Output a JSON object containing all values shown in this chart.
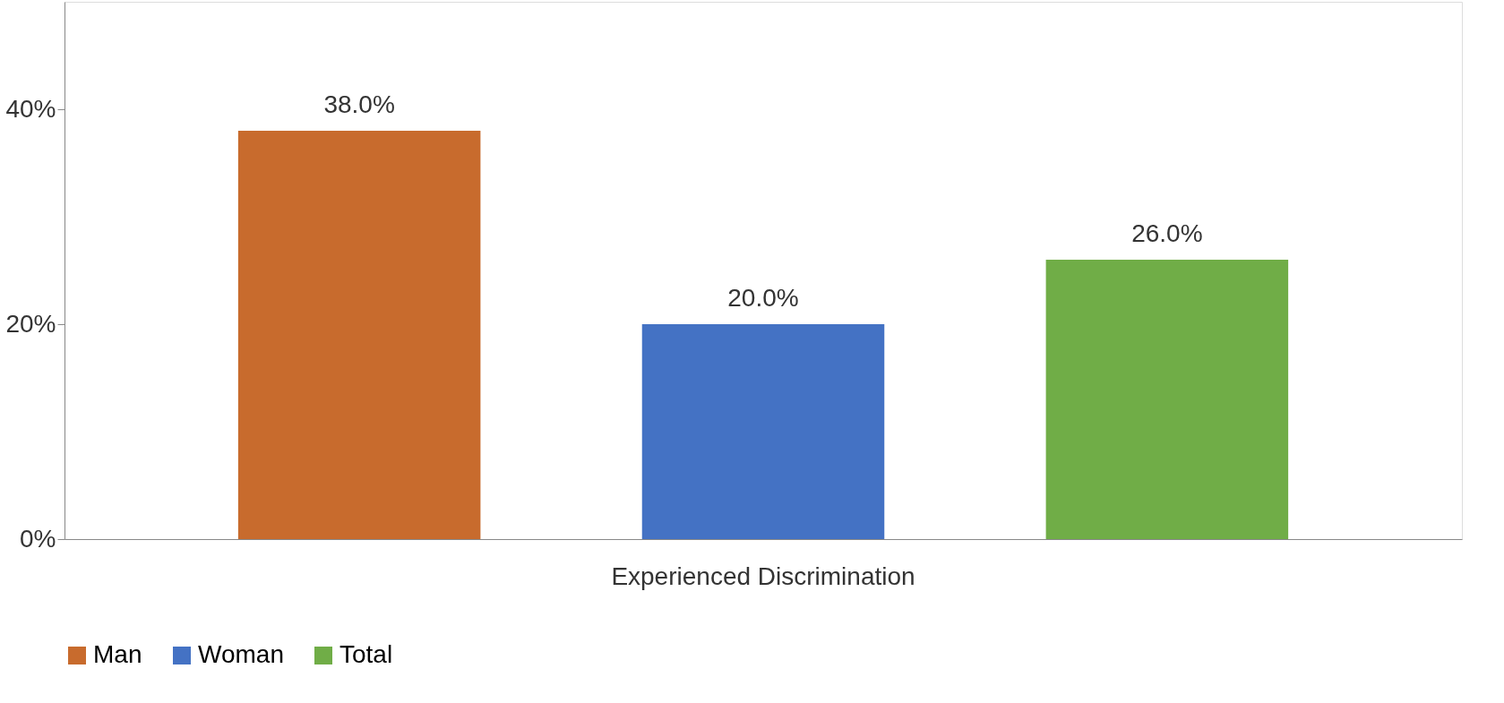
{
  "chart_data": {
    "type": "bar",
    "categories": [
      "Experienced Discrimination"
    ],
    "series": [
      {
        "name": "Man",
        "color": "#c86b2d",
        "values": [
          38.0
        ],
        "value_labels": [
          "38.0%"
        ]
      },
      {
        "name": "Woman",
        "color": "#4472c4",
        "values": [
          20.0
        ],
        "value_labels": [
          "20.0%"
        ]
      },
      {
        "name": "Total",
        "color": "#70ad47",
        "values": [
          26.0
        ],
        "value_labels": [
          "26.0%"
        ]
      }
    ],
    "ylim": [
      0,
      50
    ],
    "yticks": [
      {
        "value": 0,
        "label": "0%"
      },
      {
        "value": 20,
        "label": "20%"
      },
      {
        "value": 40,
        "label": "40%"
      }
    ],
    "grid": false,
    "legend": "bottom"
  }
}
